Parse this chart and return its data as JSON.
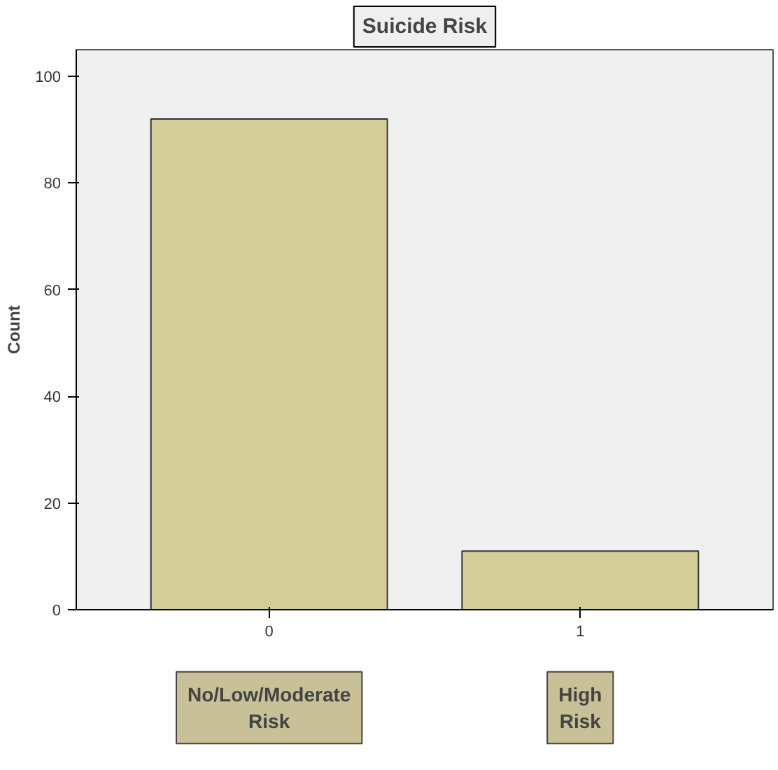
{
  "chart_data": {
    "type": "bar",
    "title": "Suicide Risk",
    "ylabel": "Count",
    "categories": [
      "0",
      "1"
    ],
    "values": [
      92,
      11
    ],
    "color": "#d3ce98",
    "ylim": [
      0,
      105
    ],
    "yticks": [
      0,
      20,
      40,
      60,
      80,
      100
    ],
    "grid": false,
    "annotations": [
      "No/Low/Moderate Risk",
      "High Risk"
    ]
  }
}
